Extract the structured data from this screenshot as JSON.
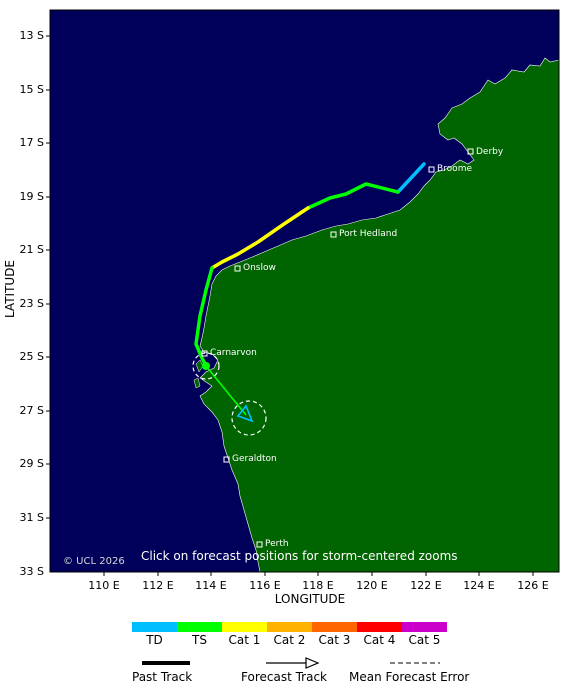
{
  "axes": {
    "ylabel": "LATITUDE",
    "xlabel": "LONGITUDE",
    "lat_ticks": [
      "13 S",
      "15 S",
      "17 S",
      "19 S",
      "21 S",
      "23 S",
      "25 S",
      "27 S",
      "29 S",
      "31 S",
      "33 S"
    ],
    "lon_ticks": [
      "110 E",
      "112 E",
      "114 E",
      "116 E",
      "118 E",
      "120 E",
      "122 E",
      "124 E",
      "126 E"
    ]
  },
  "towns": {
    "derby": "Derby",
    "broome": "Broome",
    "port_hedland": "Port Hedland",
    "onslow": "Onslow",
    "carnarvon": "Carnarvon",
    "geraldton": "Geraldton",
    "perth": "Perth"
  },
  "overlay": {
    "hint": "Click on forecast positions for storm-centered zooms",
    "copyright": "© UCL 2026"
  },
  "legend": {
    "categories": [
      {
        "label": "TD",
        "color": "#00bfff"
      },
      {
        "label": "TS",
        "color": "#00ff00"
      },
      {
        "label": "Cat 1",
        "color": "#ffff00"
      },
      {
        "label": "Cat 2",
        "color": "#ffb300"
      },
      {
        "label": "Cat 3",
        "color": "#ff6600"
      },
      {
        "label": "Cat 4",
        "color": "#ff0000"
      },
      {
        "label": "Cat 5",
        "color": "#cc00cc"
      }
    ],
    "past_track": "Past Track",
    "forecast_track": "Forecast Track",
    "mean_error": "Mean Forecast Error"
  },
  "colors": {
    "ocean": "#00005a",
    "land": "#006400"
  }
}
